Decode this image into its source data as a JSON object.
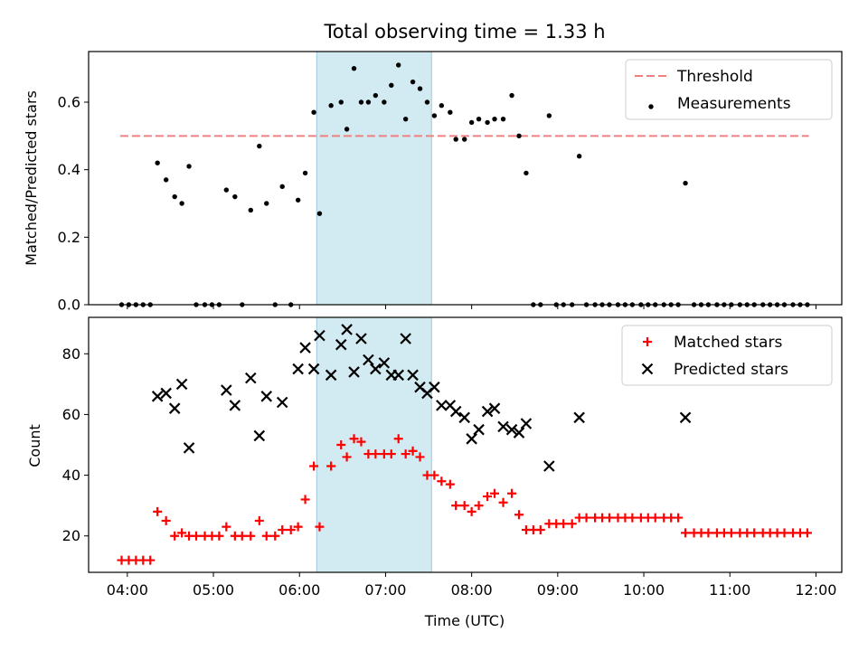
{
  "chart_data": [
    {
      "panel": "top",
      "type": "scatter",
      "title": "Total observing time = 1.33 h",
      "xlabel": "",
      "ylabel": "Matched/Predicted stars",
      "ylim": [
        0,
        0.75
      ],
      "yticks": [
        0.0,
        0.2,
        0.4,
        0.6
      ],
      "ytick_labels": [
        "0.0",
        "0.2",
        "0.4",
        "0.6"
      ],
      "xlim": [
        "03:33",
        "12:18"
      ],
      "highlight_span": [
        "06:12",
        "07:32"
      ],
      "highlight_color": "#add8e6",
      "threshold": {
        "name": "Threshold",
        "value": 0.5,
        "x_range": [
          "03:55",
          "11:55"
        ],
        "color": "#f08080"
      },
      "legend": {
        "placement": "top-right",
        "entries": [
          "Threshold",
          "Measurements"
        ]
      },
      "series": [
        {
          "name": "Measurements",
          "color": "#000000",
          "marker": "dot",
          "points": [
            [
              "03:56",
              0.0
            ],
            [
              "04:01",
              0.0
            ],
            [
              "04:06",
              0.0
            ],
            [
              "04:11",
              0.0
            ],
            [
              "04:16",
              0.0
            ],
            [
              "04:21",
              0.42
            ],
            [
              "04:27",
              0.37
            ],
            [
              "04:33",
              0.32
            ],
            [
              "04:38",
              0.3
            ],
            [
              "04:43",
              0.41
            ],
            [
              "04:48",
              0.0
            ],
            [
              "04:54",
              0.0
            ],
            [
              "04:59",
              0.0
            ],
            [
              "05:04",
              0.0
            ],
            [
              "05:09",
              0.34
            ],
            [
              "05:15",
              0.32
            ],
            [
              "05:20",
              0.0
            ],
            [
              "05:26",
              0.28
            ],
            [
              "05:32",
              0.47
            ],
            [
              "05:37",
              0.3
            ],
            [
              "05:43",
              0.0
            ],
            [
              "05:48",
              0.35
            ],
            [
              "05:54",
              0.0
            ],
            [
              "05:59",
              0.31
            ],
            [
              "06:04",
              0.39
            ],
            [
              "06:10",
              0.57
            ],
            [
              "06:14",
              0.27
            ],
            [
              "06:22",
              0.59
            ],
            [
              "06:29",
              0.6
            ],
            [
              "06:33",
              0.52
            ],
            [
              "06:38",
              0.7
            ],
            [
              "06:43",
              0.6
            ],
            [
              "06:48",
              0.6
            ],
            [
              "06:53",
              0.62
            ],
            [
              "06:59",
              0.6
            ],
            [
              "07:04",
              0.65
            ],
            [
              "07:09",
              0.71
            ],
            [
              "07:14",
              0.55
            ],
            [
              "07:19",
              0.66
            ],
            [
              "07:24",
              0.64
            ],
            [
              "07:29",
              0.6
            ],
            [
              "07:34",
              0.56
            ],
            [
              "07:39",
              0.59
            ],
            [
              "07:45",
              0.57
            ],
            [
              "07:49",
              0.49
            ],
            [
              "07:55",
              0.49
            ],
            [
              "08:00",
              0.54
            ],
            [
              "08:05",
              0.55
            ],
            [
              "08:11",
              0.54
            ],
            [
              "08:16",
              0.55
            ],
            [
              "08:22",
              0.55
            ],
            [
              "08:28",
              0.62
            ],
            [
              "08:33",
              0.5
            ],
            [
              "08:38",
              0.39
            ],
            [
              "08:43",
              0.0
            ],
            [
              "08:48",
              0.0
            ],
            [
              "08:54",
              0.56
            ],
            [
              "08:59",
              0.0
            ],
            [
              "09:04",
              0.0
            ],
            [
              "09:10",
              0.0
            ],
            [
              "09:15",
              0.44
            ],
            [
              "09:20",
              0.0
            ],
            [
              "09:26",
              0.0
            ],
            [
              "09:31",
              0.0
            ],
            [
              "09:36",
              0.0
            ],
            [
              "09:42",
              0.0
            ],
            [
              "09:47",
              0.0
            ],
            [
              "09:52",
              0.0
            ],
            [
              "09:58",
              0.0
            ],
            [
              "10:03",
              0.0
            ],
            [
              "10:08",
              0.0
            ],
            [
              "10:14",
              0.0
            ],
            [
              "10:19",
              0.0
            ],
            [
              "10:24",
              0.0
            ],
            [
              "10:29",
              0.36
            ],
            [
              "10:35",
              0.0
            ],
            [
              "10:40",
              0.0
            ],
            [
              "10:45",
              0.0
            ],
            [
              "10:51",
              0.0
            ],
            [
              "10:56",
              0.0
            ],
            [
              "11:01",
              0.0
            ],
            [
              "11:07",
              0.0
            ],
            [
              "11:12",
              0.0
            ],
            [
              "11:17",
              0.0
            ],
            [
              "11:23",
              0.0
            ],
            [
              "11:28",
              0.0
            ],
            [
              "11:33",
              0.0
            ],
            [
              "11:38",
              0.0
            ],
            [
              "11:44",
              0.0
            ],
            [
              "11:49",
              0.0
            ],
            [
              "11:54",
              0.0
            ]
          ]
        }
      ]
    },
    {
      "panel": "bottom",
      "type": "scatter",
      "title": "",
      "xlabel": "Time (UTC)",
      "ylabel": "Count",
      "ylim": [
        8,
        92
      ],
      "yticks": [
        20,
        40,
        60,
        80
      ],
      "ytick_labels": [
        "20",
        "40",
        "60",
        "80"
      ],
      "xlim": [
        "03:33",
        "12:18"
      ],
      "xticks": [
        "04:00",
        "05:00",
        "06:00",
        "07:00",
        "08:00",
        "09:00",
        "10:00",
        "11:00",
        "12:00"
      ],
      "xtick_labels": [
        "04:00",
        "05:00",
        "06:00",
        "07:00",
        "08:00",
        "09:00",
        "10:00",
        "11:00",
        "12:00"
      ],
      "highlight_span": [
        "06:12",
        "07:32"
      ],
      "highlight_color": "#add8e6",
      "legend": {
        "placement": "top-right",
        "entries": [
          "Matched stars",
          "Predicted stars"
        ]
      },
      "series": [
        {
          "name": "Matched stars",
          "color": "#ff0000",
          "marker": "plus",
          "points": [
            [
              "03:56",
              12
            ],
            [
              "04:01",
              12
            ],
            [
              "04:06",
              12
            ],
            [
              "04:11",
              12
            ],
            [
              "04:16",
              12
            ],
            [
              "04:21",
              28
            ],
            [
              "04:27",
              25
            ],
            [
              "04:33",
              20
            ],
            [
              "04:38",
              21
            ],
            [
              "04:43",
              20
            ],
            [
              "04:48",
              20
            ],
            [
              "04:54",
              20
            ],
            [
              "04:59",
              20
            ],
            [
              "05:04",
              20
            ],
            [
              "05:09",
              23
            ],
            [
              "05:15",
              20
            ],
            [
              "05:20",
              20
            ],
            [
              "05:26",
              20
            ],
            [
              "05:32",
              25
            ],
            [
              "05:37",
              20
            ],
            [
              "05:43",
              20
            ],
            [
              "05:48",
              22
            ],
            [
              "05:54",
              22
            ],
            [
              "05:59",
              23
            ],
            [
              "06:04",
              32
            ],
            [
              "06:10",
              43
            ],
            [
              "06:14",
              23
            ],
            [
              "06:22",
              43
            ],
            [
              "06:29",
              50
            ],
            [
              "06:33",
              46
            ],
            [
              "06:38",
              52
            ],
            [
              "06:43",
              51
            ],
            [
              "06:48",
              47
            ],
            [
              "06:53",
              47
            ],
            [
              "06:59",
              47
            ],
            [
              "07:04",
              47
            ],
            [
              "07:09",
              52
            ],
            [
              "07:14",
              47
            ],
            [
              "07:19",
              48
            ],
            [
              "07:24",
              46
            ],
            [
              "07:29",
              40
            ],
            [
              "07:34",
              40
            ],
            [
              "07:39",
              38
            ],
            [
              "07:45",
              37
            ],
            [
              "07:49",
              30
            ],
            [
              "07:55",
              30
            ],
            [
              "08:00",
              28
            ],
            [
              "08:05",
              30
            ],
            [
              "08:11",
              33
            ],
            [
              "08:16",
              34
            ],
            [
              "08:22",
              31
            ],
            [
              "08:28",
              34
            ],
            [
              "08:33",
              27
            ],
            [
              "08:38",
              22
            ],
            [
              "08:43",
              22
            ],
            [
              "08:48",
              22
            ],
            [
              "08:54",
              24
            ],
            [
              "08:59",
              24
            ],
            [
              "09:04",
              24
            ],
            [
              "09:10",
              24
            ],
            [
              "09:15",
              26
            ],
            [
              "09:20",
              26
            ],
            [
              "09:26",
              26
            ],
            [
              "09:31",
              26
            ],
            [
              "09:36",
              26
            ],
            [
              "09:42",
              26
            ],
            [
              "09:47",
              26
            ],
            [
              "09:52",
              26
            ],
            [
              "09:58",
              26
            ],
            [
              "10:03",
              26
            ],
            [
              "10:08",
              26
            ],
            [
              "10:14",
              26
            ],
            [
              "10:19",
              26
            ],
            [
              "10:24",
              26
            ],
            [
              "10:29",
              21
            ],
            [
              "10:35",
              21
            ],
            [
              "10:40",
              21
            ],
            [
              "10:45",
              21
            ],
            [
              "10:51",
              21
            ],
            [
              "10:56",
              21
            ],
            [
              "11:01",
              21
            ],
            [
              "11:07",
              21
            ],
            [
              "11:12",
              21
            ],
            [
              "11:17",
              21
            ],
            [
              "11:23",
              21
            ],
            [
              "11:28",
              21
            ],
            [
              "11:33",
              21
            ],
            [
              "11:38",
              21
            ],
            [
              "11:44",
              21
            ],
            [
              "11:49",
              21
            ],
            [
              "11:54",
              21
            ]
          ]
        },
        {
          "name": "Predicted stars",
          "color": "#000000",
          "marker": "x",
          "points": [
            [
              "04:21",
              66
            ],
            [
              "04:27",
              67
            ],
            [
              "04:33",
              62
            ],
            [
              "04:38",
              70
            ],
            [
              "04:43",
              49
            ],
            [
              "05:09",
              68
            ],
            [
              "05:15",
              63
            ],
            [
              "05:26",
              72
            ],
            [
              "05:32",
              53
            ],
            [
              "05:37",
              66
            ],
            [
              "05:48",
              64
            ],
            [
              "05:59",
              75
            ],
            [
              "06:04",
              82
            ],
            [
              "06:10",
              75
            ],
            [
              "06:14",
              86
            ],
            [
              "06:22",
              73
            ],
            [
              "06:29",
              83
            ],
            [
              "06:33",
              88
            ],
            [
              "06:38",
              74
            ],
            [
              "06:43",
              85
            ],
            [
              "06:48",
              78
            ],
            [
              "06:53",
              75
            ],
            [
              "06:59",
              77
            ],
            [
              "07:04",
              73
            ],
            [
              "07:09",
              73
            ],
            [
              "07:14",
              85
            ],
            [
              "07:19",
              73
            ],
            [
              "07:24",
              69
            ],
            [
              "07:29",
              67
            ],
            [
              "07:34",
              69
            ],
            [
              "07:39",
              63
            ],
            [
              "07:45",
              63
            ],
            [
              "07:49",
              61
            ],
            [
              "07:55",
              59
            ],
            [
              "08:00",
              52
            ],
            [
              "08:05",
              55
            ],
            [
              "08:11",
              61
            ],
            [
              "08:16",
              62
            ],
            [
              "08:22",
              56
            ],
            [
              "08:28",
              55
            ],
            [
              "08:33",
              54
            ],
            [
              "08:38",
              57
            ],
            [
              "08:54",
              43
            ],
            [
              "09:15",
              59
            ],
            [
              "10:29",
              59
            ]
          ]
        }
      ]
    }
  ]
}
